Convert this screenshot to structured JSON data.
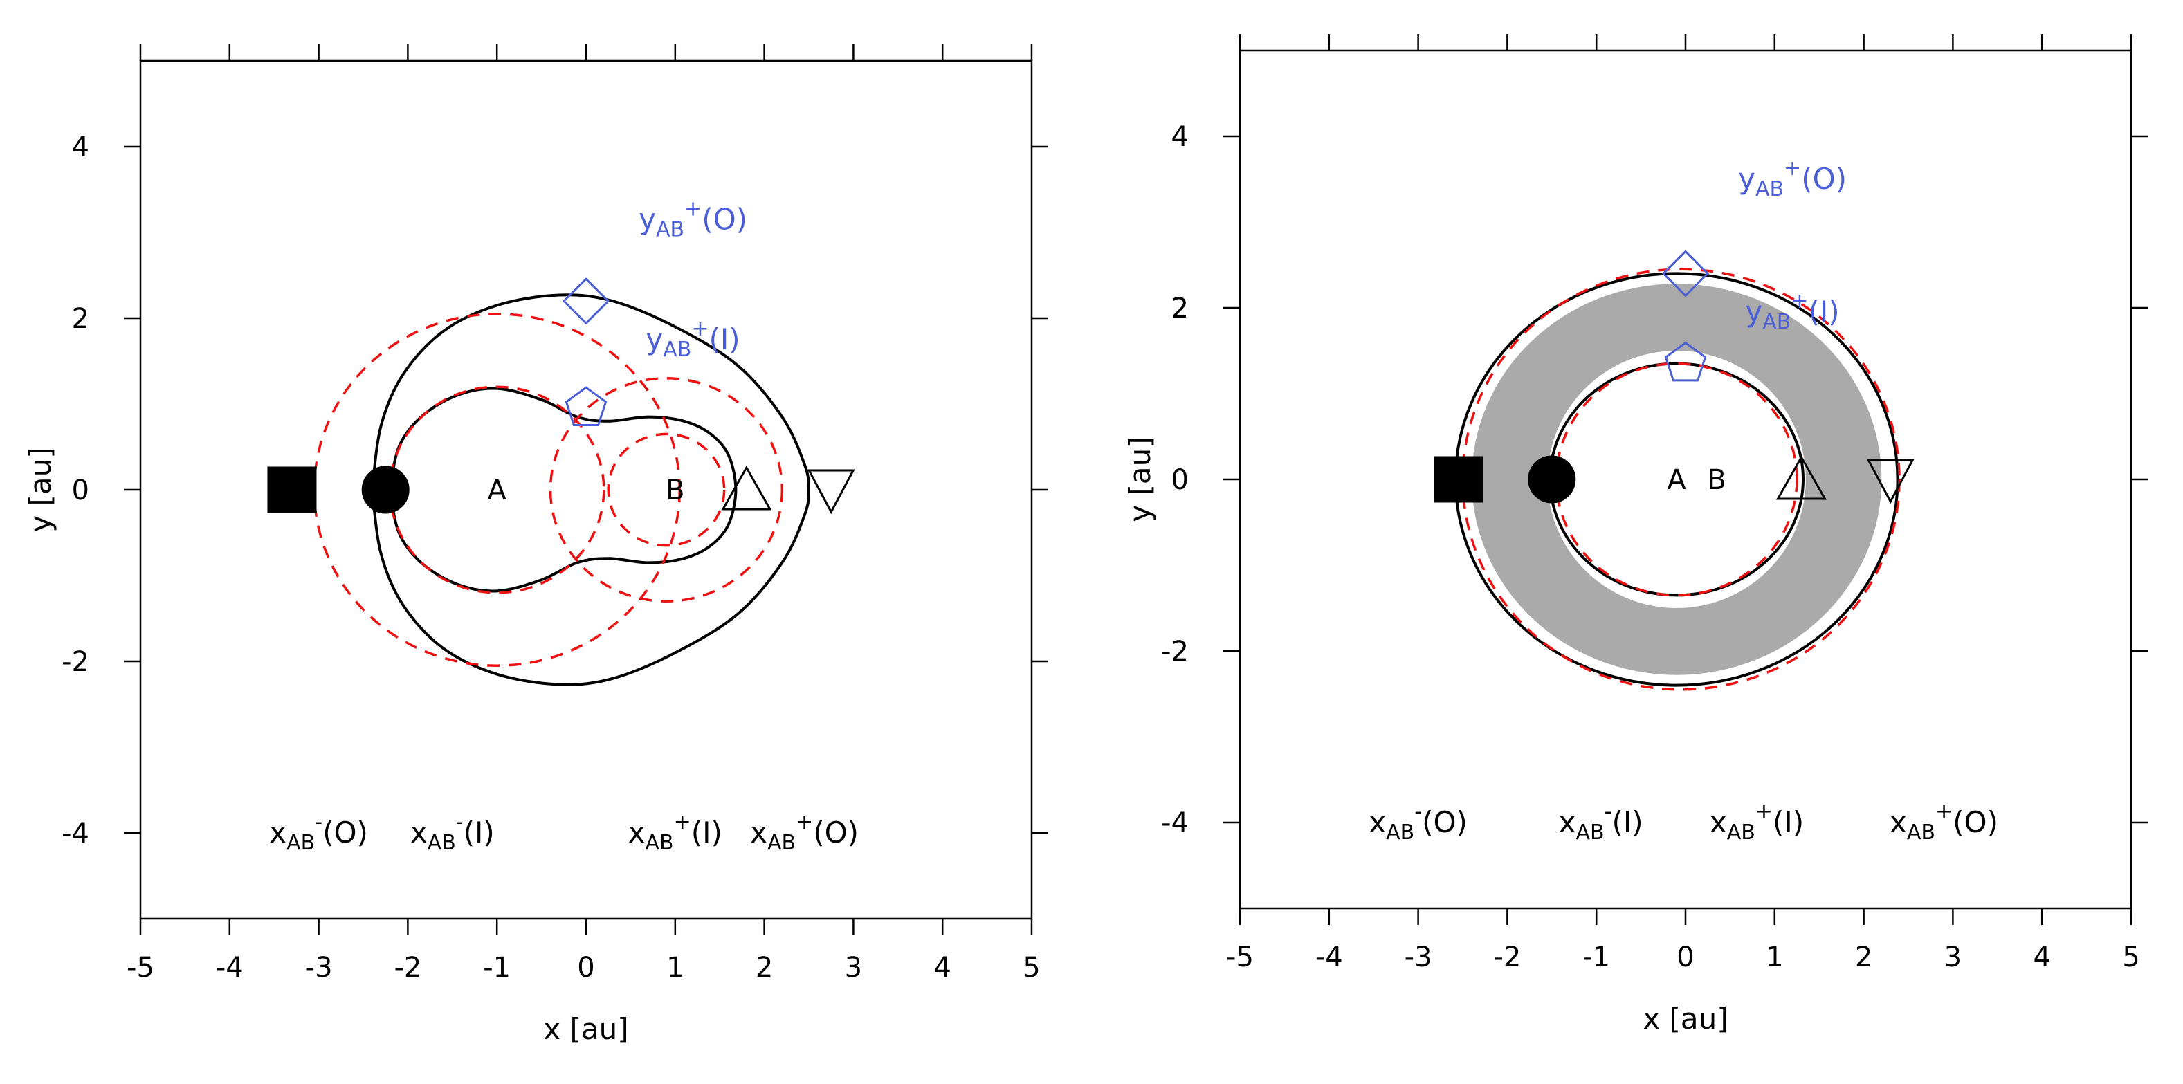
{
  "chart_data": [
    {
      "type": "line",
      "panel": "left",
      "xlabel": "x [au]",
      "ylabel": "y [au]",
      "xlim": [
        -5,
        5
      ],
      "ylim": [
        -5,
        5
      ],
      "xticks": [
        -5,
        -4,
        -3,
        -2,
        -1,
        0,
        1,
        2,
        3,
        4,
        5
      ],
      "yticks": [
        -4,
        -2,
        0,
        2,
        4
      ],
      "grid": false,
      "colors": {
        "curve": "#000000",
        "dashed": "#ee1111",
        "blue": "#4a5fd6",
        "band": "#aaaaaa"
      },
      "bodies": [
        {
          "label": "A",
          "x": -1.0,
          "y": 0.0
        },
        {
          "label": "B",
          "x": 1.0,
          "y": 0.0
        }
      ],
      "solid_curves": [
        {
          "name": "outer critical curve",
          "points": [
            [
              -2.4,
              0
            ],
            [
              -2.3,
              0.75
            ],
            [
              -2.05,
              1.35
            ],
            [
              -1.6,
              1.85
            ],
            [
              -1.0,
              2.15
            ],
            [
              -0.3,
              2.27
            ],
            [
              0.3,
              2.2
            ],
            [
              1.0,
              1.9
            ],
            [
              1.7,
              1.45
            ],
            [
              2.2,
              0.85
            ],
            [
              2.45,
              0.3
            ],
            [
              2.5,
              0
            ],
            [
              2.45,
              -0.3
            ],
            [
              2.2,
              -0.85
            ],
            [
              1.7,
              -1.45
            ],
            [
              1.0,
              -1.9
            ],
            [
              0.3,
              -2.2
            ],
            [
              -0.3,
              -2.27
            ],
            [
              -1.0,
              -2.15
            ],
            [
              -1.6,
              -1.85
            ],
            [
              -2.05,
              -1.35
            ],
            [
              -2.3,
              -0.75
            ],
            [
              -2.4,
              0
            ]
          ]
        },
        {
          "name": "inner critical curve",
          "points": [
            [
              -2.2,
              0
            ],
            [
              -2.1,
              0.5
            ],
            [
              -1.85,
              0.85
            ],
            [
              -1.45,
              1.1
            ],
            [
              -1.0,
              1.18
            ],
            [
              -0.5,
              1.05
            ],
            [
              -0.1,
              0.85
            ],
            [
              0.25,
              0.8
            ],
            [
              0.7,
              0.85
            ],
            [
              1.1,
              0.8
            ],
            [
              1.4,
              0.65
            ],
            [
              1.6,
              0.4
            ],
            [
              1.68,
              0
            ],
            [
              1.6,
              -0.4
            ],
            [
              1.4,
              -0.65
            ],
            [
              1.1,
              -0.8
            ],
            [
              0.7,
              -0.85
            ],
            [
              0.25,
              -0.8
            ],
            [
              -0.1,
              -0.85
            ],
            [
              -0.5,
              -1.05
            ],
            [
              -1.0,
              -1.18
            ],
            [
              -1.45,
              -1.1
            ],
            [
              -1.85,
              -0.85
            ],
            [
              -2.1,
              -0.5
            ],
            [
              -2.2,
              0
            ]
          ]
        }
      ],
      "dashed_circles": [
        {
          "cx": -1.0,
          "cy": 0.0,
          "r": 2.05
        },
        {
          "cx": -1.0,
          "cy": 0.0,
          "r": 1.2
        },
        {
          "cx": 0.9,
          "cy": 0.0,
          "r": 1.3
        },
        {
          "cx": 0.9,
          "cy": 0.0,
          "r": 0.65
        }
      ],
      "markers": [
        {
          "label": "xAB-(O)",
          "shape": "square",
          "x": -3.3,
          "y": 0.0,
          "filled": true,
          "color": "#000000"
        },
        {
          "label": "xAB-(I)",
          "shape": "circle",
          "x": -2.25,
          "y": 0.0,
          "filled": true,
          "color": "#000000"
        },
        {
          "label": "xAB+(I)",
          "shape": "triangle-up",
          "x": 1.8,
          "y": 0.0,
          "filled": false,
          "color": "#000000"
        },
        {
          "label": "xAB+(O)",
          "shape": "triangle-down",
          "x": 2.75,
          "y": 0.0,
          "filled": false,
          "color": "#000000"
        },
        {
          "label": "yAB+(O)",
          "shape": "diamond",
          "x": 0.0,
          "y": 2.2,
          "filled": false,
          "color": "#4a5fd6"
        },
        {
          "label": "yAB+(I)",
          "shape": "pentagon",
          "x": 0.0,
          "y": 0.95,
          "filled": false,
          "color": "#4a5fd6"
        }
      ],
      "annotations": [
        {
          "var": "x",
          "sub": "AB",
          "sup": "-",
          "paren": "(O)",
          "color": "#000000",
          "x": -3.0,
          "y": -4.0
        },
        {
          "var": "x",
          "sub": "AB",
          "sup": "-",
          "paren": "(I)",
          "color": "#000000",
          "x": -1.5,
          "y": -4.0
        },
        {
          "var": "x",
          "sub": "AB",
          "sup": "+",
          "paren": "(I)",
          "color": "#000000",
          "x": 1.0,
          "y": -4.0
        },
        {
          "var": "x",
          "sub": "AB",
          "sup": "+",
          "paren": "(O)",
          "color": "#000000",
          "x": 2.45,
          "y": -4.0
        },
        {
          "var": "y",
          "sub": "AB",
          "sup": "+",
          "paren": "(O)",
          "color": "#4a5fd6",
          "x": 1.2,
          "y": 3.15
        },
        {
          "var": "y",
          "sub": "AB",
          "sup": "+",
          "paren": "(I)",
          "color": "#4a5fd6",
          "x": 1.2,
          "y": 1.75
        }
      ]
    },
    {
      "type": "line",
      "panel": "right",
      "xlabel": "x [au]",
      "ylabel": "y [au]",
      "xlim": [
        -5,
        5
      ],
      "ylim": [
        -5,
        5
      ],
      "xticks": [
        -5,
        -4,
        -3,
        -2,
        -1,
        0,
        1,
        2,
        3,
        4,
        5
      ],
      "yticks": [
        -4,
        -2,
        0,
        2,
        4
      ],
      "grid": false,
      "colors": {
        "curve": "#000000",
        "dashed": "#ee1111",
        "blue": "#4a5fd6",
        "band": "#aaaaaa"
      },
      "bodies": [
        {
          "label": "A",
          "x": -0.1,
          "y": 0.0
        },
        {
          "label": "B",
          "x": 0.35,
          "y": 0.0
        }
      ],
      "band": {
        "cx": -0.1,
        "cy": 0.0,
        "outer_rx": 2.3,
        "outer_ry": 2.28,
        "inner_rx": 1.45,
        "inner_ry": 1.5
      },
      "solid_curves": [
        {
          "name": "outer critical ellipse",
          "ellipse": {
            "cx": -0.1,
            "cy": 0.0,
            "rx": 2.48,
            "ry": 2.4
          }
        },
        {
          "name": "inner critical ellipse",
          "ellipse": {
            "cx": -0.1,
            "cy": 0.0,
            "rx": 1.42,
            "ry": 1.35
          }
        }
      ],
      "dashed_circles": [
        {
          "cx": -0.05,
          "cy": 0.0,
          "r": 2.45
        },
        {
          "cx": -0.1,
          "cy": 0.0,
          "r": 1.35
        }
      ],
      "markers": [
        {
          "label": "xAB-(O)",
          "shape": "square",
          "x": -2.55,
          "y": 0.0,
          "filled": true,
          "color": "#000000"
        },
        {
          "label": "xAB-(I)",
          "shape": "circle",
          "x": -1.5,
          "y": 0.0,
          "filled": true,
          "color": "#000000"
        },
        {
          "label": "xAB+(I)",
          "shape": "triangle-up",
          "x": 1.3,
          "y": 0.0,
          "filled": false,
          "color": "#000000"
        },
        {
          "label": "xAB+(O)",
          "shape": "triangle-down",
          "x": 2.3,
          "y": 0.0,
          "filled": false,
          "color": "#000000"
        },
        {
          "label": "yAB+(O)",
          "shape": "diamond",
          "x": 0.0,
          "y": 2.4,
          "filled": false,
          "color": "#4a5fd6"
        },
        {
          "label": "yAB+(I)",
          "shape": "pentagon",
          "x": 0.0,
          "y": 1.35,
          "filled": false,
          "color": "#4a5fd6"
        }
      ],
      "annotations": [
        {
          "var": "x",
          "sub": "AB",
          "sup": "-",
          "paren": "(O)",
          "color": "#000000",
          "x": -3.0,
          "y": -4.0
        },
        {
          "var": "x",
          "sub": "AB",
          "sup": "-",
          "paren": "(I)",
          "color": "#000000",
          "x": -0.95,
          "y": -4.0
        },
        {
          "var": "x",
          "sub": "AB",
          "sup": "+",
          "paren": "(I)",
          "color": "#000000",
          "x": 0.8,
          "y": -4.0
        },
        {
          "var": "x",
          "sub": "AB",
          "sup": "+",
          "paren": "(O)",
          "color": "#000000",
          "x": 2.9,
          "y": -4.0
        },
        {
          "var": "y",
          "sub": "AB",
          "sup": "+",
          "paren": "(O)",
          "color": "#4a5fd6",
          "x": 1.2,
          "y": 3.5
        },
        {
          "var": "y",
          "sub": "AB",
          "sup": "+",
          "paren": "(I)",
          "color": "#4a5fd6",
          "x": 1.2,
          "y": 1.95
        }
      ]
    }
  ]
}
